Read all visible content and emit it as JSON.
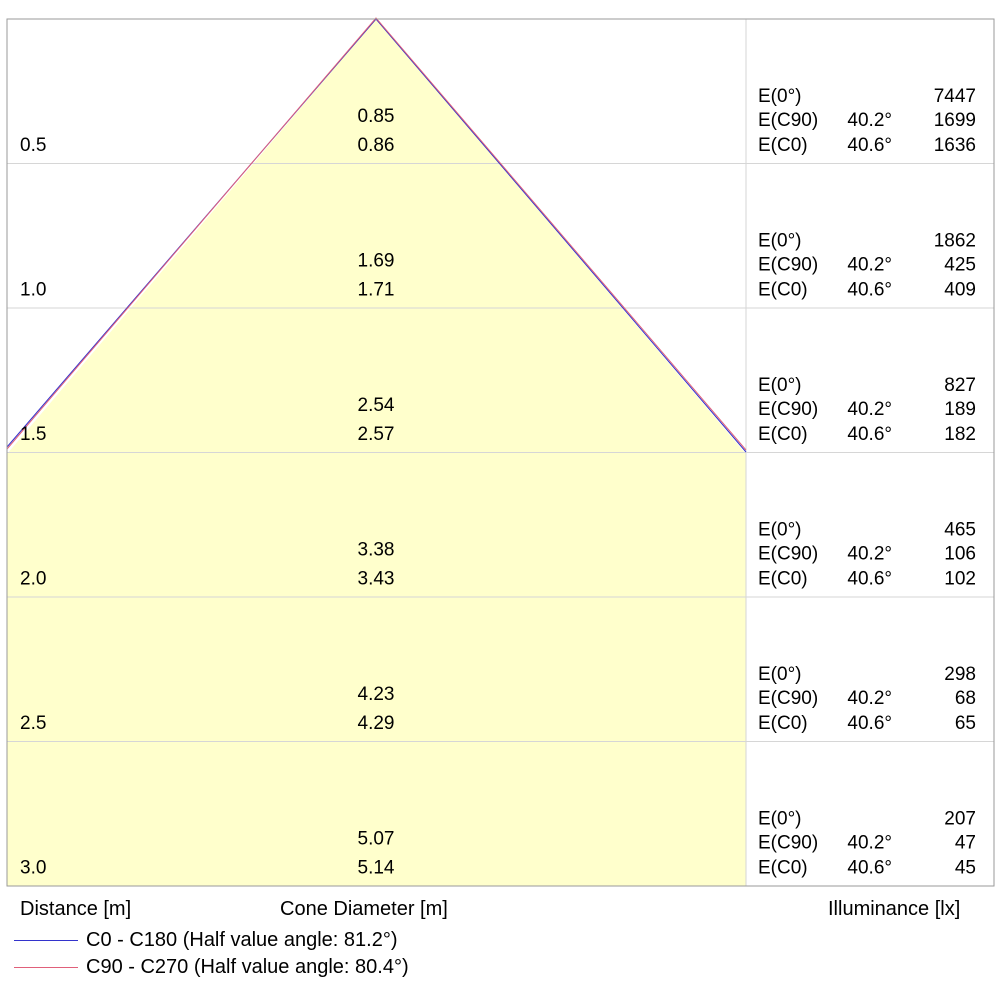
{
  "colors": {
    "cone_fill": "#ffffcc",
    "grid": "#d6d6d6",
    "frame": "#9a9a9a",
    "c0_line": "#3333cc",
    "c90_line": "#e0607a"
  },
  "rows": [
    {
      "distance": "0.5",
      "cone_c0": "0.85",
      "cone_c90": "0.86",
      "e0_label": "E(0°)",
      "e0_value": "7447",
      "ec90_label": "E(C90)",
      "ec90_angle": "40.2°",
      "ec90_value": "1699",
      "ec0_label": "E(C0)",
      "ec0_angle": "40.6°",
      "ec0_value": "1636"
    },
    {
      "distance": "1.0",
      "cone_c0": "1.69",
      "cone_c90": "1.71",
      "e0_label": "E(0°)",
      "e0_value": "1862",
      "ec90_label": "E(C90)",
      "ec90_angle": "40.2°",
      "ec90_value": "425",
      "ec0_label": "E(C0)",
      "ec0_angle": "40.6°",
      "ec0_value": "409"
    },
    {
      "distance": "1.5",
      "cone_c0": "2.54",
      "cone_c90": "2.57",
      "e0_label": "E(0°)",
      "e0_value": "827",
      "ec90_label": "E(C90)",
      "ec90_angle": "40.2°",
      "ec90_value": "189",
      "ec0_label": "E(C0)",
      "ec0_angle": "40.6°",
      "ec0_value": "182"
    },
    {
      "distance": "2.0",
      "cone_c0": "3.38",
      "cone_c90": "3.43",
      "e0_label": "E(0°)",
      "e0_value": "465",
      "ec90_label": "E(C90)",
      "ec90_angle": "40.2°",
      "ec90_value": "106",
      "ec0_label": "E(C0)",
      "ec0_angle": "40.6°",
      "ec0_value": "102"
    },
    {
      "distance": "2.5",
      "cone_c0": "4.23",
      "cone_c90": "4.29",
      "e0_label": "E(0°)",
      "e0_value": "298",
      "ec90_label": "E(C90)",
      "ec90_angle": "40.2°",
      "ec90_value": "68",
      "ec0_label": "E(C0)",
      "ec0_angle": "40.6°",
      "ec0_value": "65"
    },
    {
      "distance": "3.0",
      "cone_c0": "5.07",
      "cone_c90": "5.14",
      "e0_label": "E(0°)",
      "e0_value": "207",
      "ec90_label": "E(C90)",
      "ec90_angle": "40.2°",
      "ec90_value": "47",
      "ec0_label": "E(C0)",
      "ec0_angle": "40.6°",
      "ec0_value": "45"
    }
  ],
  "footer": {
    "distance_label": "Distance [m]",
    "cone_label": "Cone Diameter [m]",
    "illuminance_label": "Illuminance [lx]"
  },
  "legend": [
    {
      "label": "C0 - C180 (Half value angle: 81.2°)",
      "color": "#3333cc"
    },
    {
      "label": "C90 - C270 (Half value angle: 80.4°)",
      "color": "#e0607a"
    }
  ]
}
